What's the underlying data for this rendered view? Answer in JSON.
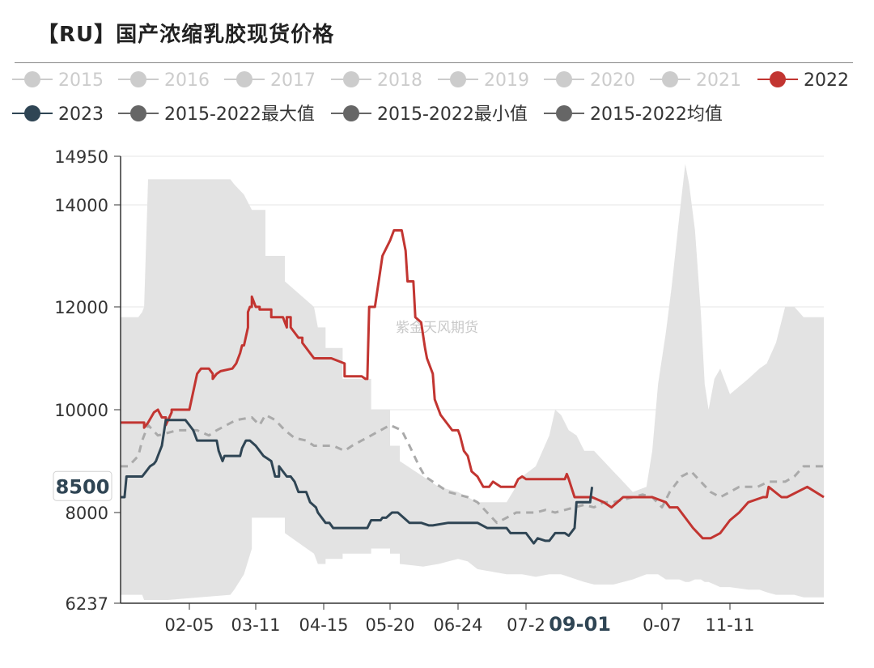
{
  "title": "【RU】国产浓缩乳胶现货价格",
  "watermark": "紫金天风期货",
  "chart_data": {
    "type": "line",
    "ylim": [
      6237,
      14950
    ],
    "yticks": [
      6237,
      8000,
      10000,
      12000,
      14000,
      14950
    ],
    "ytick_labels": [
      "6237",
      "8000",
      "10000",
      "12000",
      "14000",
      "14950"
    ],
    "xlim": [
      1,
      366
    ],
    "xticks": [
      {
        "label": "02-05",
        "day": 36
      },
      {
        "label": "03-11",
        "day": 70
      },
      {
        "label": "04-15",
        "day": 105
      },
      {
        "label": "05-20",
        "day": 140
      },
      {
        "label": "06-24",
        "day": 175
      },
      {
        "label": "07-2",
        "day": 210
      },
      {
        "label": "0-07",
        "day": 280
      },
      {
        "label": "11-11",
        "day": 315
      }
    ],
    "crosshair": {
      "x_label": "09-01",
      "x_day": 244,
      "y_value": 8500,
      "y_label": "8500"
    },
    "legend": [
      {
        "name": "2015",
        "color": "#cccccc",
        "active": false
      },
      {
        "name": "2016",
        "color": "#cccccc",
        "active": false
      },
      {
        "name": "2017",
        "color": "#cccccc",
        "active": false
      },
      {
        "name": "2018",
        "color": "#cccccc",
        "active": false
      },
      {
        "name": "2019",
        "color": "#cccccc",
        "active": false
      },
      {
        "name": "2020",
        "color": "#cccccc",
        "active": false
      },
      {
        "name": "2021",
        "color": "#cccccc",
        "active": false
      },
      {
        "name": "2022",
        "color": "#c23531",
        "active": true
      },
      {
        "name": "2023",
        "color": "#2f4554",
        "active": true
      },
      {
        "name": "2015-2022最大值",
        "color": "#666666",
        "active": true
      },
      {
        "name": "2015-2022最小值",
        "color": "#666666",
        "active": true
      },
      {
        "name": "2015-2022均值",
        "color": "#666666",
        "active": true
      }
    ],
    "range_band": {
      "name": "2015-2022 range",
      "color": "#e3e3e3",
      "x": [
        1,
        10,
        12,
        13,
        15,
        25,
        57,
        59,
        64,
        68,
        68,
        75,
        75,
        85,
        85,
        100,
        102,
        106,
        106,
        115,
        115,
        130,
        130,
        140,
        140,
        145,
        145,
        157,
        165,
        175,
        180,
        185,
        200,
        208,
        215,
        222,
        225,
        228,
        232,
        236,
        240,
        245,
        255,
        265,
        272,
        275,
        278,
        282,
        285,
        289,
        292,
        294,
        297,
        300,
        302,
        304,
        307,
        310,
        315,
        325,
        331,
        335,
        340,
        345,
        350,
        355,
        360,
        366
      ],
      "max": [
        11800,
        11800,
        11900,
        12000,
        14500,
        14500,
        14500,
        14400,
        14200,
        13900,
        13900,
        13900,
        13000,
        13000,
        12500,
        12000,
        11600,
        11600,
        11200,
        11200,
        10600,
        10600,
        10000,
        10000,
        9300,
        9300,
        9000,
        8700,
        8500,
        8400,
        8300,
        8200,
        8200,
        8700,
        8900,
        9500,
        10000,
        9900,
        9600,
        9500,
        9200,
        9200,
        8800,
        8400,
        8500,
        9200,
        10500,
        11500,
        12400,
        13800,
        14800,
        14400,
        13500,
        11900,
        10500,
        10000,
        10600,
        10800,
        10300,
        10600,
        10800,
        10900,
        11300,
        12000,
        12000,
        11800,
        11800,
        11800
      ],
      "min": [
        6400,
        6400,
        6400,
        6300,
        6300,
        6300,
        6400,
        6500,
        6800,
        7300,
        7900,
        7900,
        7900,
        7900,
        7600,
        7200,
        7000,
        7000,
        7100,
        7100,
        7200,
        7200,
        7300,
        7300,
        7200,
        7200,
        7000,
        6950,
        7000,
        7100,
        7050,
        6900,
        6800,
        6800,
        6750,
        6800,
        6800,
        6800,
        6750,
        6700,
        6650,
        6600,
        6600,
        6700,
        6800,
        6800,
        6800,
        6700,
        6700,
        6700,
        6650,
        6650,
        6700,
        6700,
        6650,
        6650,
        6600,
        6550,
        6550,
        6500,
        6500,
        6450,
        6400,
        6400,
        6400,
        6350,
        6350,
        6350
      ]
    },
    "series": [
      {
        "name": "2015-2022均值",
        "color": "#aaaaaa",
        "dashed": true,
        "x": [
          1,
          5,
          10,
          12,
          15,
          20,
          30,
          40,
          46,
          50,
          60,
          68,
          72,
          75,
          80,
          85,
          90,
          96,
          100,
          110,
          116,
          120,
          125,
          130,
          135,
          140,
          146,
          150,
          155,
          158,
          162,
          170,
          180,
          185,
          190,
          195,
          200,
          205,
          210,
          215,
          220,
          225,
          230,
          235,
          240,
          245,
          250,
          255,
          260,
          265,
          270,
          275,
          280,
          284,
          290,
          295,
          300,
          305,
          310,
          315,
          320,
          330,
          336,
          345,
          350,
          355,
          360,
          366
        ],
        "y": [
          8900,
          8900,
          9100,
          9400,
          9700,
          9500,
          9600,
          9600,
          9500,
          9600,
          9800,
          9850,
          9700,
          9900,
          9800,
          9600,
          9450,
          9400,
          9300,
          9300,
          9200,
          9300,
          9400,
          9500,
          9600,
          9700,
          9600,
          9300,
          8900,
          8700,
          8600,
          8400,
          8300,
          8200,
          8000,
          7800,
          7900,
          8000,
          8000,
          8000,
          8050,
          8000,
          8050,
          8100,
          8150,
          8100,
          8200,
          8200,
          8250,
          8300,
          8350,
          8300,
          8100,
          8400,
          8700,
          8800,
          8600,
          8400,
          8300,
          8400,
          8500,
          8500,
          8600,
          8600,
          8700,
          8900,
          8900,
          8900
        ]
      },
      {
        "name": "2022",
        "color": "#c23531",
        "dashed": false,
        "x": [
          1,
          13,
          13,
          15,
          18,
          20,
          22,
          24,
          24,
          27,
          27,
          30,
          36,
          40,
          42,
          46,
          48,
          48,
          50,
          52,
          52,
          58,
          60,
          62,
          63,
          64,
          66,
          66,
          67,
          68,
          68,
          70,
          72,
          72,
          78,
          78,
          84,
          85,
          86,
          86,
          88,
          88,
          92,
          94,
          94,
          100,
          103,
          108,
          109,
          116,
          116,
          125,
          127,
          128,
          129,
          132,
          132,
          136,
          136,
          140,
          140,
          142,
          146,
          148,
          149,
          152,
          153,
          156,
          158,
          159,
          162,
          163,
          166,
          170,
          172,
          175,
          176,
          178,
          180,
          182,
          185,
          188,
          191,
          193,
          197,
          204,
          206,
          208,
          210,
          212,
          230,
          231,
          232,
          235,
          244,
          250,
          254,
          260,
          265,
          268,
          275,
          282,
          284,
          288,
          290,
          292,
          296,
          301,
          305,
          310,
          315,
          320,
          325,
          333,
          335,
          336,
          343,
          346,
          357,
          366
        ],
        "y": [
          9750,
          9750,
          9650,
          9750,
          9950,
          10000,
          9850,
          9850,
          9700,
          9950,
          10000,
          10000,
          10000,
          10700,
          10800,
          10800,
          10700,
          10600,
          10700,
          10750,
          10750,
          10800,
          10900,
          11100,
          11250,
          11250,
          11600,
          11900,
          12000,
          12000,
          12200,
          12000,
          12000,
          11950,
          11950,
          11800,
          11800,
          11700,
          11600,
          11800,
          11800,
          11600,
          11400,
          11400,
          11300,
          11000,
          11000,
          11000,
          11000,
          10900,
          10650,
          10650,
          10600,
          10600,
          12000,
          12000,
          12000,
          13000,
          13000,
          13300,
          13300,
          13500,
          13500,
          13100,
          12500,
          12500,
          11800,
          11700,
          11200,
          11000,
          10700,
          10200,
          9900,
          9700,
          9600,
          9600,
          9500,
          9200,
          9100,
          8800,
          8700,
          8500,
          8500,
          8600,
          8500,
          8500,
          8650,
          8700,
          8650,
          8650,
          8650,
          8750,
          8650,
          8300,
          8300,
          8200,
          8100,
          8300,
          8300,
          8300,
          8300,
          8200,
          8100,
          8100,
          8000,
          7900,
          7700,
          7500,
          7500,
          7600,
          7850,
          8000,
          8200,
          8300,
          8300,
          8500,
          8300,
          8300,
          8500,
          8300
        ]
      },
      {
        "name": "2023",
        "color": "#2f4554",
        "dashed": false,
        "x": [
          1,
          3,
          4,
          6,
          12,
          14,
          16,
          18,
          19,
          20,
          22,
          24,
          30,
          31,
          34,
          36,
          38,
          40,
          50,
          51,
          53,
          54,
          56,
          62,
          63,
          65,
          67,
          70,
          72,
          74,
          76,
          76,
          78,
          80,
          82,
          82,
          86,
          88,
          90,
          92,
          96,
          98,
          101,
          102,
          106,
          108,
          110,
          114,
          118,
          122,
          128,
          130,
          135,
          136,
          138,
          141,
          144,
          147,
          150,
          156,
          160,
          162,
          170,
          174,
          180,
          185,
          190,
          195,
          200,
          202,
          210,
          214,
          216,
          220,
          222,
          225,
          230,
          232,
          235,
          236,
          240,
          243,
          244
        ],
        "y": [
          8300,
          8300,
          8700,
          8700,
          8700,
          8800,
          8900,
          8950,
          9000,
          9100,
          9300,
          9800,
          9800,
          9800,
          9800,
          9700,
          9600,
          9400,
          9400,
          9200,
          9000,
          9100,
          9100,
          9100,
          9250,
          9400,
          9400,
          9300,
          9200,
          9100,
          9050,
          9050,
          9000,
          8700,
          8700,
          8900,
          8700,
          8700,
          8600,
          8400,
          8400,
          8200,
          8100,
          8000,
          7800,
          7800,
          7700,
          7700,
          7700,
          7700,
          7700,
          7850,
          7850,
          7900,
          7900,
          8000,
          8000,
          7900,
          7800,
          7800,
          7750,
          7750,
          7800,
          7800,
          7800,
          7800,
          7700,
          7700,
          7700,
          7600,
          7600,
          7400,
          7500,
          7450,
          7450,
          7600,
          7600,
          7550,
          7700,
          8200,
          8200,
          8200,
          8500
        ]
      }
    ]
  }
}
